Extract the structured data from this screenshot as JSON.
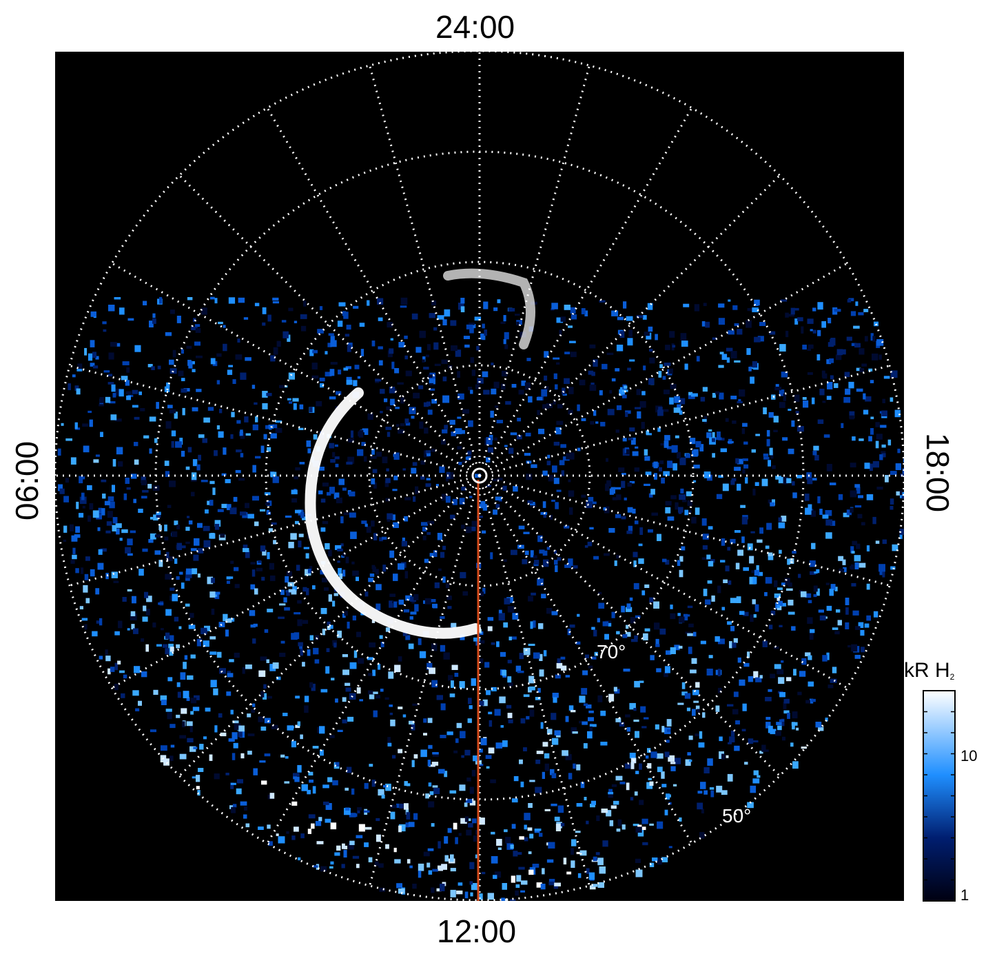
{
  "figure": {
    "lt_labels": {
      "top": "24:00",
      "bottom": "12:00",
      "left": "06:00",
      "right": "18:00"
    },
    "latitude_labels": [
      {
        "text": "70°"
      },
      {
        "text": "50°"
      }
    ],
    "colorbar": {
      "title_main": "kR H",
      "title_sub": "2",
      "ticks": [
        "10",
        "1"
      ],
      "colors": {
        "low": "#000010",
        "mid": "#1f8fff",
        "high": "#ffffff"
      }
    },
    "colors": {
      "background": "#000000",
      "grid": "#ffffff",
      "aurora_bright": "#ffffff",
      "emission_blue": "#1f8fff",
      "meridian_line": "#d44a1a"
    }
  }
}
